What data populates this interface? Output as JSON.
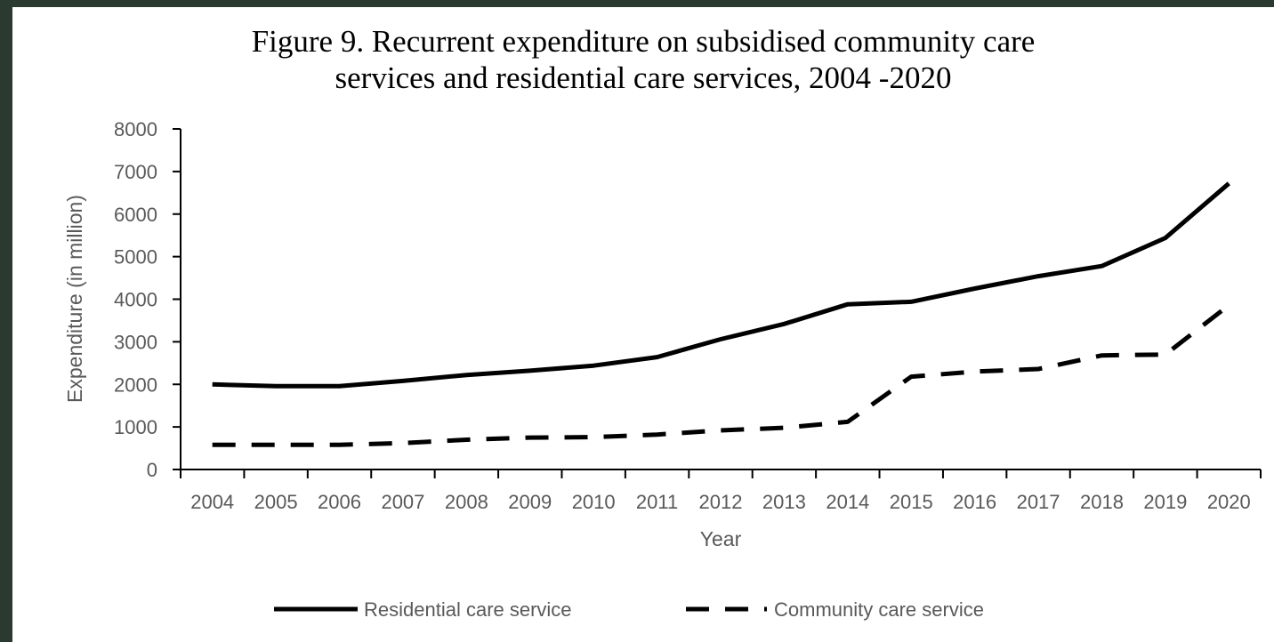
{
  "chart_data": {
    "type": "line",
    "title_line1": "Figure 9. Recurrent expenditure on subsidised community care",
    "title_line2": "services and residential care services, 2004  -2020",
    "xlabel": "Year",
    "ylabel": "Expenditure (in million)",
    "ylim": [
      0,
      8000
    ],
    "yticks": [
      "0",
      "1000",
      "2000",
      "3000",
      "4000",
      "5000",
      "6000",
      "7000",
      "8000"
    ],
    "categories": [
      "2004",
      "2005",
      "2006",
      "2007",
      "2008",
      "2009",
      "2010",
      "2011",
      "2012",
      "2013",
      "2014",
      "2015",
      "2016",
      "2017",
      "2018",
      "2019",
      "2020"
    ],
    "legend_position": "bottom",
    "grid": false,
    "series": [
      {
        "name": "Residential care service",
        "style": "solid",
        "color": "#000000",
        "values": [
          2000,
          1960,
          1960,
          2080,
          2220,
          2320,
          2440,
          2640,
          3060,
          3420,
          3880,
          3940,
          4250,
          4540,
          4780,
          5440,
          6720
        ]
      },
      {
        "name": "Community care service",
        "style": "dashed",
        "color": "#000000",
        "values": [
          580,
          580,
          580,
          620,
          700,
          750,
          760,
          820,
          920,
          980,
          1120,
          2180,
          2300,
          2360,
          2680,
          2700,
          3860
        ]
      }
    ]
  }
}
